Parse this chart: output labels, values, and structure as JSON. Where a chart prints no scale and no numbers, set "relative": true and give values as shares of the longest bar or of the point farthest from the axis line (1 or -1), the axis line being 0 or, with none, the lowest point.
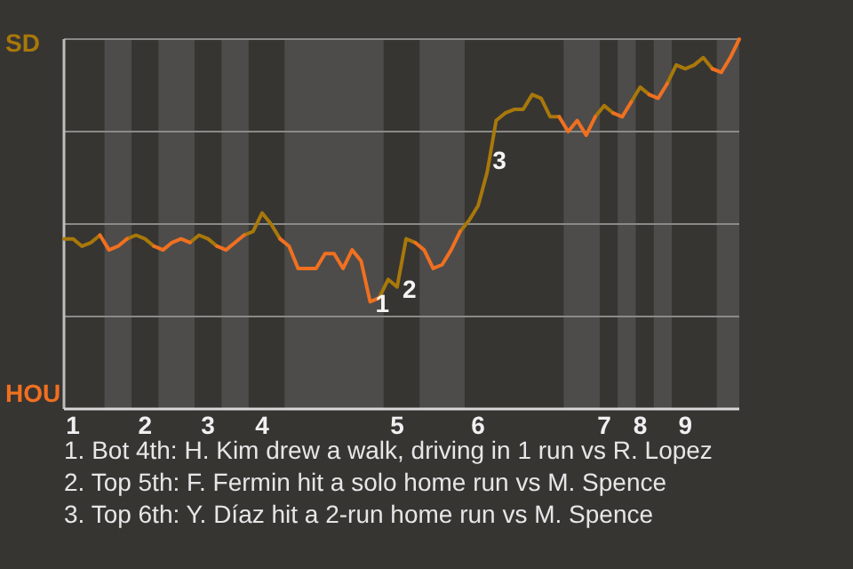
{
  "chart_data": {
    "type": "line",
    "relative": true,
    "grid": "y",
    "legend": "left",
    "categories": [
      null,
      "1",
      null,
      null,
      null,
      null,
      null,
      null,
      null,
      "2",
      null,
      null,
      null,
      null,
      null,
      null,
      "3",
      null,
      null,
      null,
      null,
      null,
      "4",
      null,
      null,
      null,
      null,
      null,
      null,
      null,
      null,
      null,
      null,
      null,
      null,
      null,
      null,
      "5",
      null,
      null,
      null,
      null,
      null,
      null,
      null,
      null,
      "6",
      null,
      null,
      null,
      null,
      null,
      null,
      null,
      null,
      null,
      null,
      null,
      null,
      null,
      "7",
      null,
      null,
      null,
      "8",
      null,
      null,
      null,
      null,
      "9",
      null,
      null,
      null,
      null,
      null,
      null
    ],
    "series": [
      {
        "name": "SD",
        "color": "#a8780a",
        "values": [
          0.46,
          0.46,
          0.44,
          0.45,
          0.47,
          null,
          null,
          0.46,
          0.47,
          0.46,
          0.44,
          null,
          null,
          null,
          0.45,
          0.47,
          0.46,
          0.44,
          null,
          null,
          0.47,
          0.48,
          0.53,
          0.5,
          0.46,
          null,
          null,
          null,
          null,
          null,
          null,
          null,
          null,
          null,
          null,
          0.3,
          0.35,
          0.33,
          0.46,
          0.45,
          null,
          null,
          null,
          null,
          0.48,
          0.51,
          0.55,
          0.64,
          0.78,
          0.8,
          0.81,
          0.81,
          0.85,
          0.84,
          0.79,
          0.79,
          null,
          null,
          null,
          0.79,
          0.82,
          0.8,
          null,
          0.83,
          0.87,
          0.85,
          null,
          0.88,
          0.93,
          0.92,
          0.93,
          0.95,
          0.92,
          null,
          null,
          null
        ]
      },
      {
        "name": "HOU",
        "color": "#f07020",
        "values": [
          null,
          null,
          null,
          null,
          0.47,
          0.43,
          0.44,
          0.46,
          null,
          null,
          0.44,
          0.43,
          0.45,
          0.46,
          0.45,
          null,
          null,
          0.44,
          0.43,
          0.45,
          0.47,
          null,
          null,
          null,
          0.46,
          0.44,
          0.38,
          0.38,
          0.38,
          0.42,
          0.42,
          0.38,
          0.43,
          0.4,
          0.29,
          0.3,
          null,
          null,
          null,
          0.45,
          0.43,
          0.38,
          0.39,
          0.43,
          0.48,
          null,
          null,
          null,
          null,
          null,
          null,
          null,
          null,
          null,
          null,
          0.79,
          0.75,
          0.78,
          0.74,
          0.79,
          null,
          0.8,
          0.79,
          0.83,
          null,
          0.85,
          0.84,
          0.88,
          null,
          null,
          null,
          null,
          0.92,
          0.91,
          0.95,
          1
        ]
      }
    ],
    "annotations": [
      "1",
      "2",
      "3",
      "1. Bot 4th: H. Kim drew a walk, driving in 1 run vs R. Lopez",
      "2. Top 5th: F. Fermin hit a solo home run vs M. Spence",
      "3. Top 6th: Y. Díaz hit a 2-run home run vs M. Spence"
    ]
  }
}
